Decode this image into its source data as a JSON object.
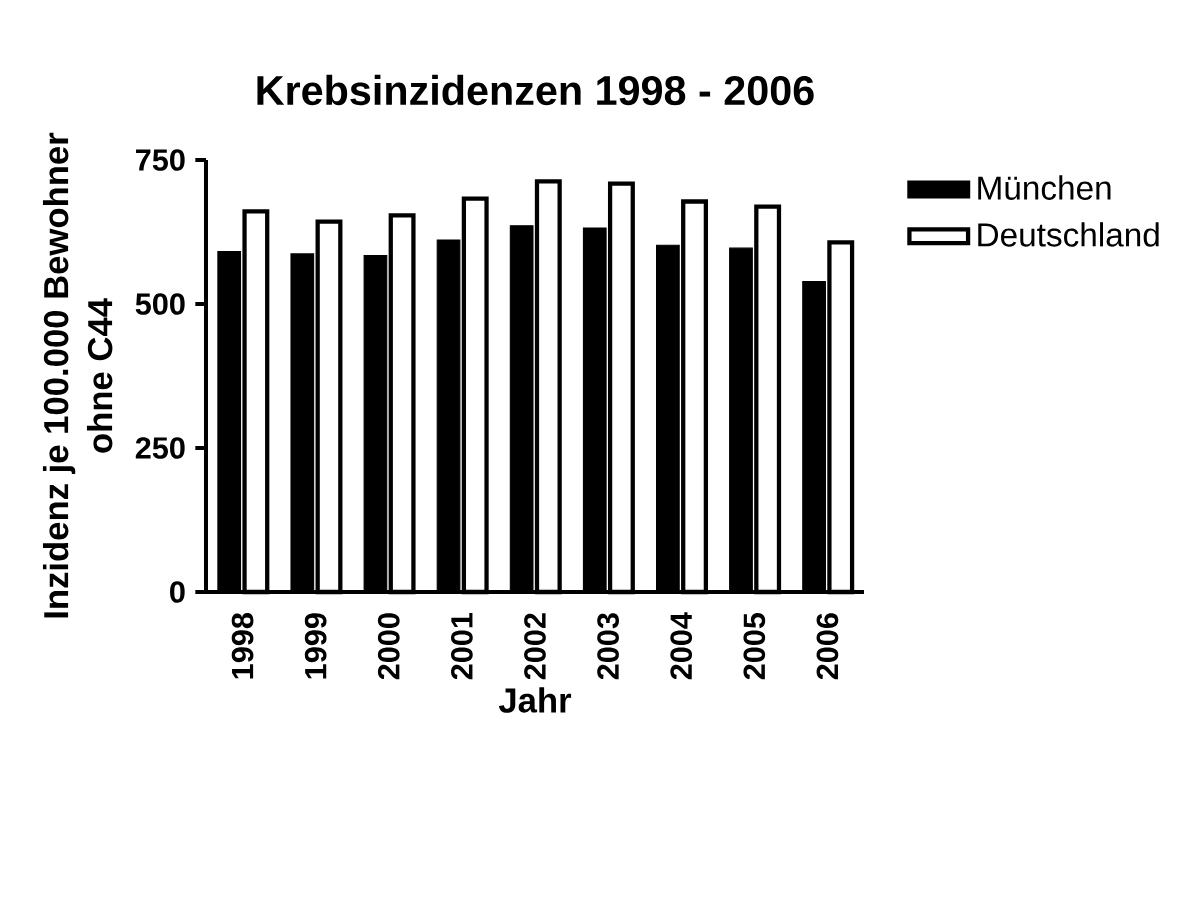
{
  "chart_data": {
    "type": "bar",
    "title": "Krebsinzidenzen 1998 - 2006",
    "xlabel": "Jahr",
    "ylabel": "Inzidenz je 100.000 Bewohner ohne C44",
    "categories": [
      "1998",
      "1999",
      "2000",
      "2001",
      "2002",
      "2003",
      "2004",
      "2005",
      "2006"
    ],
    "series": [
      {
        "name": "München",
        "color": "#000000",
        "values": [
          591,
          587,
          584,
          611,
          636,
          632,
          602,
          597,
          539
        ]
      },
      {
        "name": "Deutschland",
        "color": "#ffffff",
        "values": [
          661,
          643,
          654,
          683,
          713,
          709,
          678,
          669,
          607
        ]
      }
    ],
    "ylim": [
      0,
      750
    ],
    "yticks": [
      0,
      250,
      500,
      750
    ],
    "grid": false,
    "legend": "top right"
  }
}
